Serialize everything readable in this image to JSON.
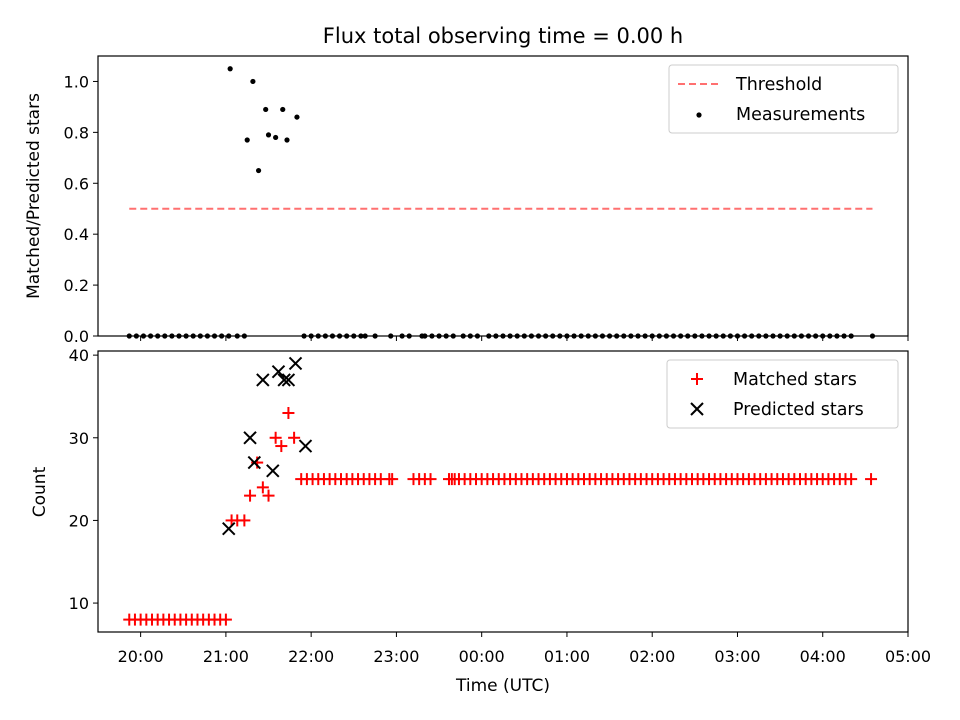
{
  "figure": {
    "title": "Flux total observing time = 0.00 h"
  },
  "chart_data": [
    {
      "type": "scatter",
      "ylabel": "Matched/Predicted stars",
      "ylim": [
        0.0,
        1.1
      ],
      "yticks": [
        0.0,
        0.2,
        0.4,
        0.6,
        0.8,
        1.0
      ],
      "ytick_labels": [
        "0.0",
        "0.2",
        "0.4",
        "0.6",
        "0.8",
        "1.0"
      ],
      "xlim_minutes": [
        1170,
        1740
      ],
      "legend_position": "top-right",
      "threshold": {
        "name": "Threshold",
        "value": 0.5,
        "x_range_minutes": [
          1192,
          1715
        ],
        "color": "#ff7070"
      },
      "series": [
        {
          "name": "Measurements",
          "marker": "dot",
          "color": "#000000",
          "x_minutes": [
            1192,
            1197,
            1202,
            1207,
            1212,
            1217,
            1222,
            1227,
            1232,
            1237,
            1242,
            1247,
            1252,
            1257,
            1262,
            1263,
            1268,
            1273,
            1275,
            1279,
            1283,
            1288,
            1290,
            1295,
            1300,
            1303,
            1310,
            1315,
            1320,
            1325,
            1330,
            1335,
            1340,
            1345,
            1350,
            1355,
            1358,
            1365,
            1376,
            1384,
            1389,
            1398,
            1400,
            1405,
            1410,
            1415,
            1420,
            1427,
            1432,
            1437,
            1445,
            1450,
            1455,
            1460,
            1465,
            1470,
            1475,
            1480,
            1485,
            1490,
            1495,
            1500,
            1505,
            1510,
            1515,
            1520,
            1525,
            1530,
            1535,
            1540,
            1545,
            1550,
            1555,
            1560,
            1565,
            1570,
            1575,
            1580,
            1585,
            1590,
            1595,
            1600,
            1605,
            1610,
            1615,
            1620,
            1625,
            1630,
            1635,
            1640,
            1645,
            1650,
            1655,
            1660,
            1665,
            1670,
            1675,
            1680,
            1685,
            1690,
            1695,
            1700,
            1715
          ],
          "y": [
            0,
            0,
            0,
            0,
            0,
            0,
            0,
            0,
            0,
            0,
            0,
            0,
            0,
            0,
            0,
            1.05,
            0,
            0,
            0.77,
            1.0,
            0.65,
            0.89,
            0.79,
            0.78,
            0.89,
            0.77,
            0.86,
            0,
            0,
            0,
            0,
            0,
            0,
            0,
            0,
            0,
            0,
            0,
            0,
            0,
            0,
            0,
            0,
            0,
            0,
            0,
            0,
            0,
            0,
            0,
            0,
            0,
            0,
            0,
            0,
            0,
            0,
            0,
            0,
            0,
            0,
            0,
            0,
            0,
            0,
            0,
            0,
            0,
            0,
            0,
            0,
            0,
            0,
            0,
            0,
            0,
            0,
            0,
            0,
            0,
            0,
            0,
            0,
            0,
            0,
            0,
            0,
            0,
            0,
            0,
            0,
            0,
            0,
            0,
            0,
            0,
            0,
            0,
            0,
            0,
            0,
            0,
            0
          ]
        }
      ]
    },
    {
      "type": "scatter",
      "ylabel": "Count",
      "xlabel": "Time (UTC)",
      "ylim": [
        6.5,
        40.5
      ],
      "yticks": [
        10,
        20,
        30,
        40
      ],
      "ytick_labels": [
        "10",
        "20",
        "30",
        "40"
      ],
      "xlim_minutes": [
        1170,
        1740
      ],
      "xticks_minutes": [
        1200,
        1260,
        1320,
        1380,
        1440,
        1500,
        1560,
        1620,
        1680,
        1740
      ],
      "xtick_labels": [
        "20:00",
        "21:00",
        "22:00",
        "23:00",
        "00:00",
        "01:00",
        "02:00",
        "03:00",
        "04:00",
        "05:00"
      ],
      "legend_position": "top-right",
      "series": [
        {
          "name": "Matched stars",
          "marker": "plus",
          "color": "#ff0000",
          "x_minutes": [
            1192,
            1196,
            1200,
            1204,
            1208,
            1212,
            1216,
            1220,
            1224,
            1228,
            1232,
            1236,
            1240,
            1244,
            1248,
            1252,
            1256,
            1260,
            1264,
            1268,
            1273,
            1277,
            1282,
            1286,
            1290,
            1295,
            1299,
            1304,
            1308,
            1313,
            1317,
            1321,
            1325,
            1329,
            1333,
            1337,
            1341,
            1345,
            1349,
            1353,
            1357,
            1361,
            1365,
            1369,
            1375,
            1377,
            1392,
            1396,
            1400,
            1404,
            1417,
            1419,
            1421,
            1424,
            1428,
            1432,
            1436,
            1440,
            1444,
            1448,
            1452,
            1456,
            1460,
            1464,
            1468,
            1472,
            1476,
            1480,
            1484,
            1488,
            1492,
            1496,
            1500,
            1504,
            1508,
            1512,
            1516,
            1520,
            1524,
            1528,
            1532,
            1536,
            1540,
            1544,
            1548,
            1552,
            1556,
            1560,
            1564,
            1568,
            1572,
            1576,
            1580,
            1584,
            1588,
            1592,
            1596,
            1600,
            1604,
            1608,
            1612,
            1616,
            1620,
            1624,
            1628,
            1632,
            1636,
            1640,
            1644,
            1648,
            1652,
            1656,
            1660,
            1664,
            1668,
            1672,
            1676,
            1680,
            1684,
            1688,
            1692,
            1696,
            1700,
            1714
          ],
          "y": [
            8,
            8,
            8,
            8,
            8,
            8,
            8,
            8,
            8,
            8,
            8,
            8,
            8,
            8,
            8,
            8,
            8,
            8,
            20,
            20,
            20,
            23,
            27,
            24,
            23,
            30,
            29,
            33,
            30,
            25,
            25,
            25,
            25,
            25,
            25,
            25,
            25,
            25,
            25,
            25,
            25,
            25,
            25,
            25,
            25,
            25,
            25,
            25,
            25,
            25,
            25,
            25,
            25,
            25,
            25,
            25,
            25,
            25,
            25,
            25,
            25,
            25,
            25,
            25,
            25,
            25,
            25,
            25,
            25,
            25,
            25,
            25,
            25,
            25,
            25,
            25,
            25,
            25,
            25,
            25,
            25,
            25,
            25,
            25,
            25,
            25,
            25,
            25,
            25,
            25,
            25,
            25,
            25,
            25,
            25,
            25,
            25,
            25,
            25,
            25,
            25,
            25,
            25,
            25,
            25,
            25,
            25,
            25,
            25,
            25,
            25,
            25,
            25,
            25,
            25,
            25,
            25,
            25,
            25,
            25,
            25,
            25,
            25,
            25
          ]
        },
        {
          "name": "Predicted stars",
          "marker": "x",
          "color": "#000000",
          "x_minutes": [
            1262,
            1277,
            1280,
            1286,
            1293,
            1297,
            1301,
            1304,
            1309,
            1316
          ],
          "y": [
            19,
            30,
            27,
            37,
            26,
            38,
            37,
            37,
            39,
            29
          ]
        }
      ]
    }
  ]
}
